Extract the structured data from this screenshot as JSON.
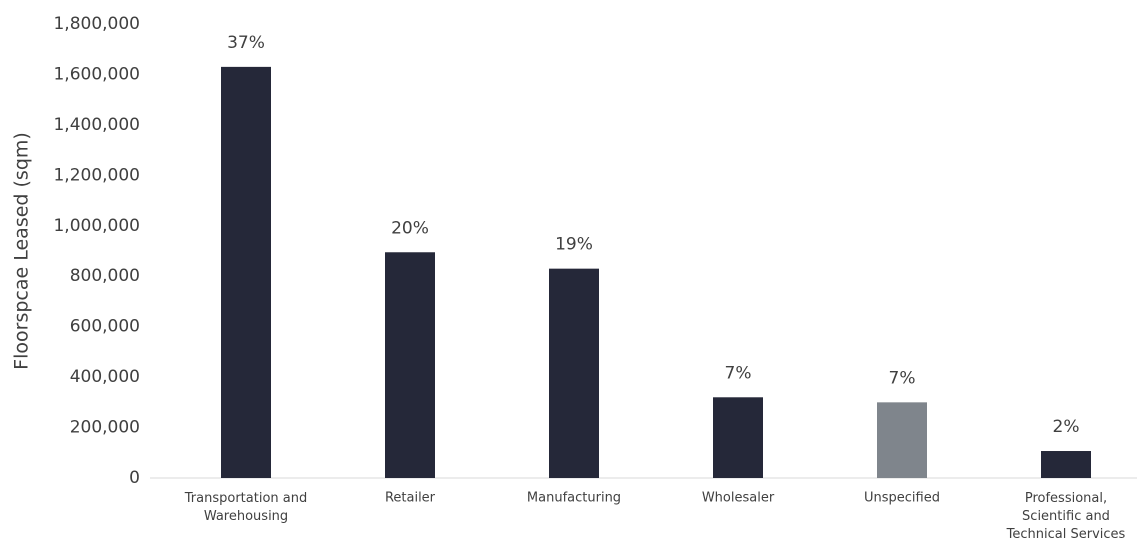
{
  "chart_data": {
    "type": "bar",
    "y_label": "Floorspcae Leased (sqm)",
    "categories": [
      "Transportation and\nWarehousing",
      "Retailer",
      "Manufacturing",
      "Wholesaler",
      "Unspecified",
      "Professional,\nScientific and\nTechnical Services"
    ],
    "values": [
      1630000,
      895000,
      830000,
      320000,
      300000,
      107000
    ],
    "share_labels": [
      "37%",
      "20%",
      "19%",
      "7%",
      "7%",
      "2%"
    ],
    "colors": [
      "#252839",
      "#252839",
      "#252839",
      "#252839",
      "#7f858c",
      "#252839"
    ],
    "ylim": [
      0,
      1800000
    ],
    "yticks": [
      0,
      {
        "value": 200000,
        "label": "200,000"
      },
      {
        "value": 400000,
        "label": "400,000"
      },
      {
        "value": 600000,
        "label": "600,000"
      },
      {
        "value": 800000,
        "label": "800,000"
      },
      {
        "value": 1000000,
        "label": "1,000,000"
      },
      {
        "value": 1200000,
        "label": "1,200,000"
      },
      {
        "value": 1400000,
        "label": "1,400,000"
      },
      {
        "value": 1600000,
        "label": "1,600,000"
      },
      {
        "value": 1800000,
        "label": "1,800,000"
      }
    ],
    "grid": false
  }
}
